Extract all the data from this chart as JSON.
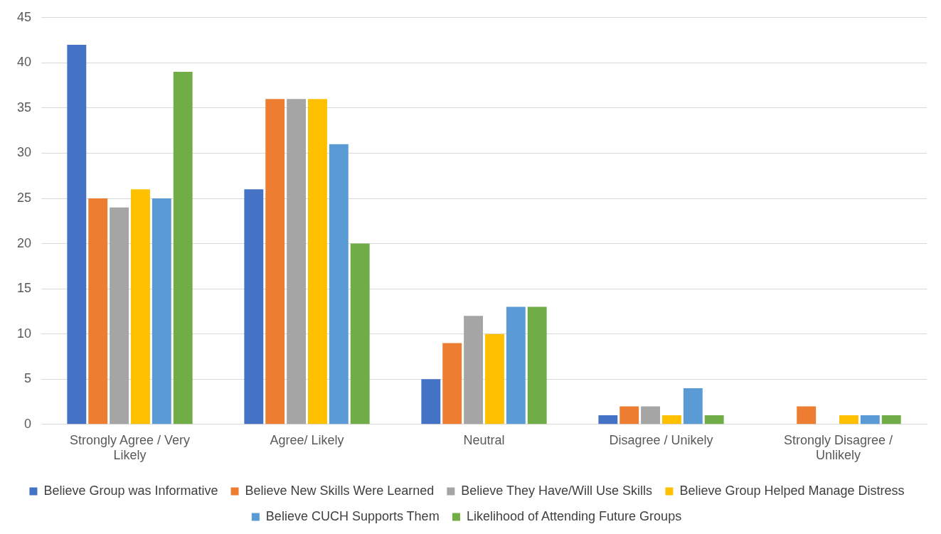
{
  "chart_data": {
    "type": "bar",
    "categories": [
      "Strongly Agree / Very Likely",
      "Agree/ Likely",
      "Neutral",
      "Disagree / Unikely",
      "Strongly Disagree / Unlikely"
    ],
    "series": [
      {
        "name": "Believe Group was Informative",
        "color": "#4472c4",
        "values": [
          42,
          26,
          5,
          1,
          0
        ]
      },
      {
        "name": "Believe New Skills Were Learned",
        "color": "#ed7d31",
        "values": [
          25,
          36,
          9,
          2,
          2
        ]
      },
      {
        "name": "Believe They Have/Will Use Skills",
        "color": "#a5a5a5",
        "values": [
          24,
          36,
          12,
          2,
          0
        ]
      },
      {
        "name": "Believe Group Helped Manage Distress",
        "color": "#ffc000",
        "values": [
          26,
          36,
          10,
          1,
          1
        ]
      },
      {
        "name": "Believe CUCH Supports Them",
        "color": "#5b9bd5",
        "values": [
          25,
          31,
          13,
          4,
          1
        ]
      },
      {
        "name": "Likelihood of Attending Future Groups",
        "color": "#70ad47",
        "values": [
          39,
          20,
          13,
          1,
          1
        ]
      }
    ],
    "ylim": [
      0,
      45
    ],
    "yticks": [
      0,
      5,
      10,
      15,
      20,
      25,
      30,
      35,
      40,
      45
    ],
    "grid": "y",
    "legend": "bottom"
  }
}
